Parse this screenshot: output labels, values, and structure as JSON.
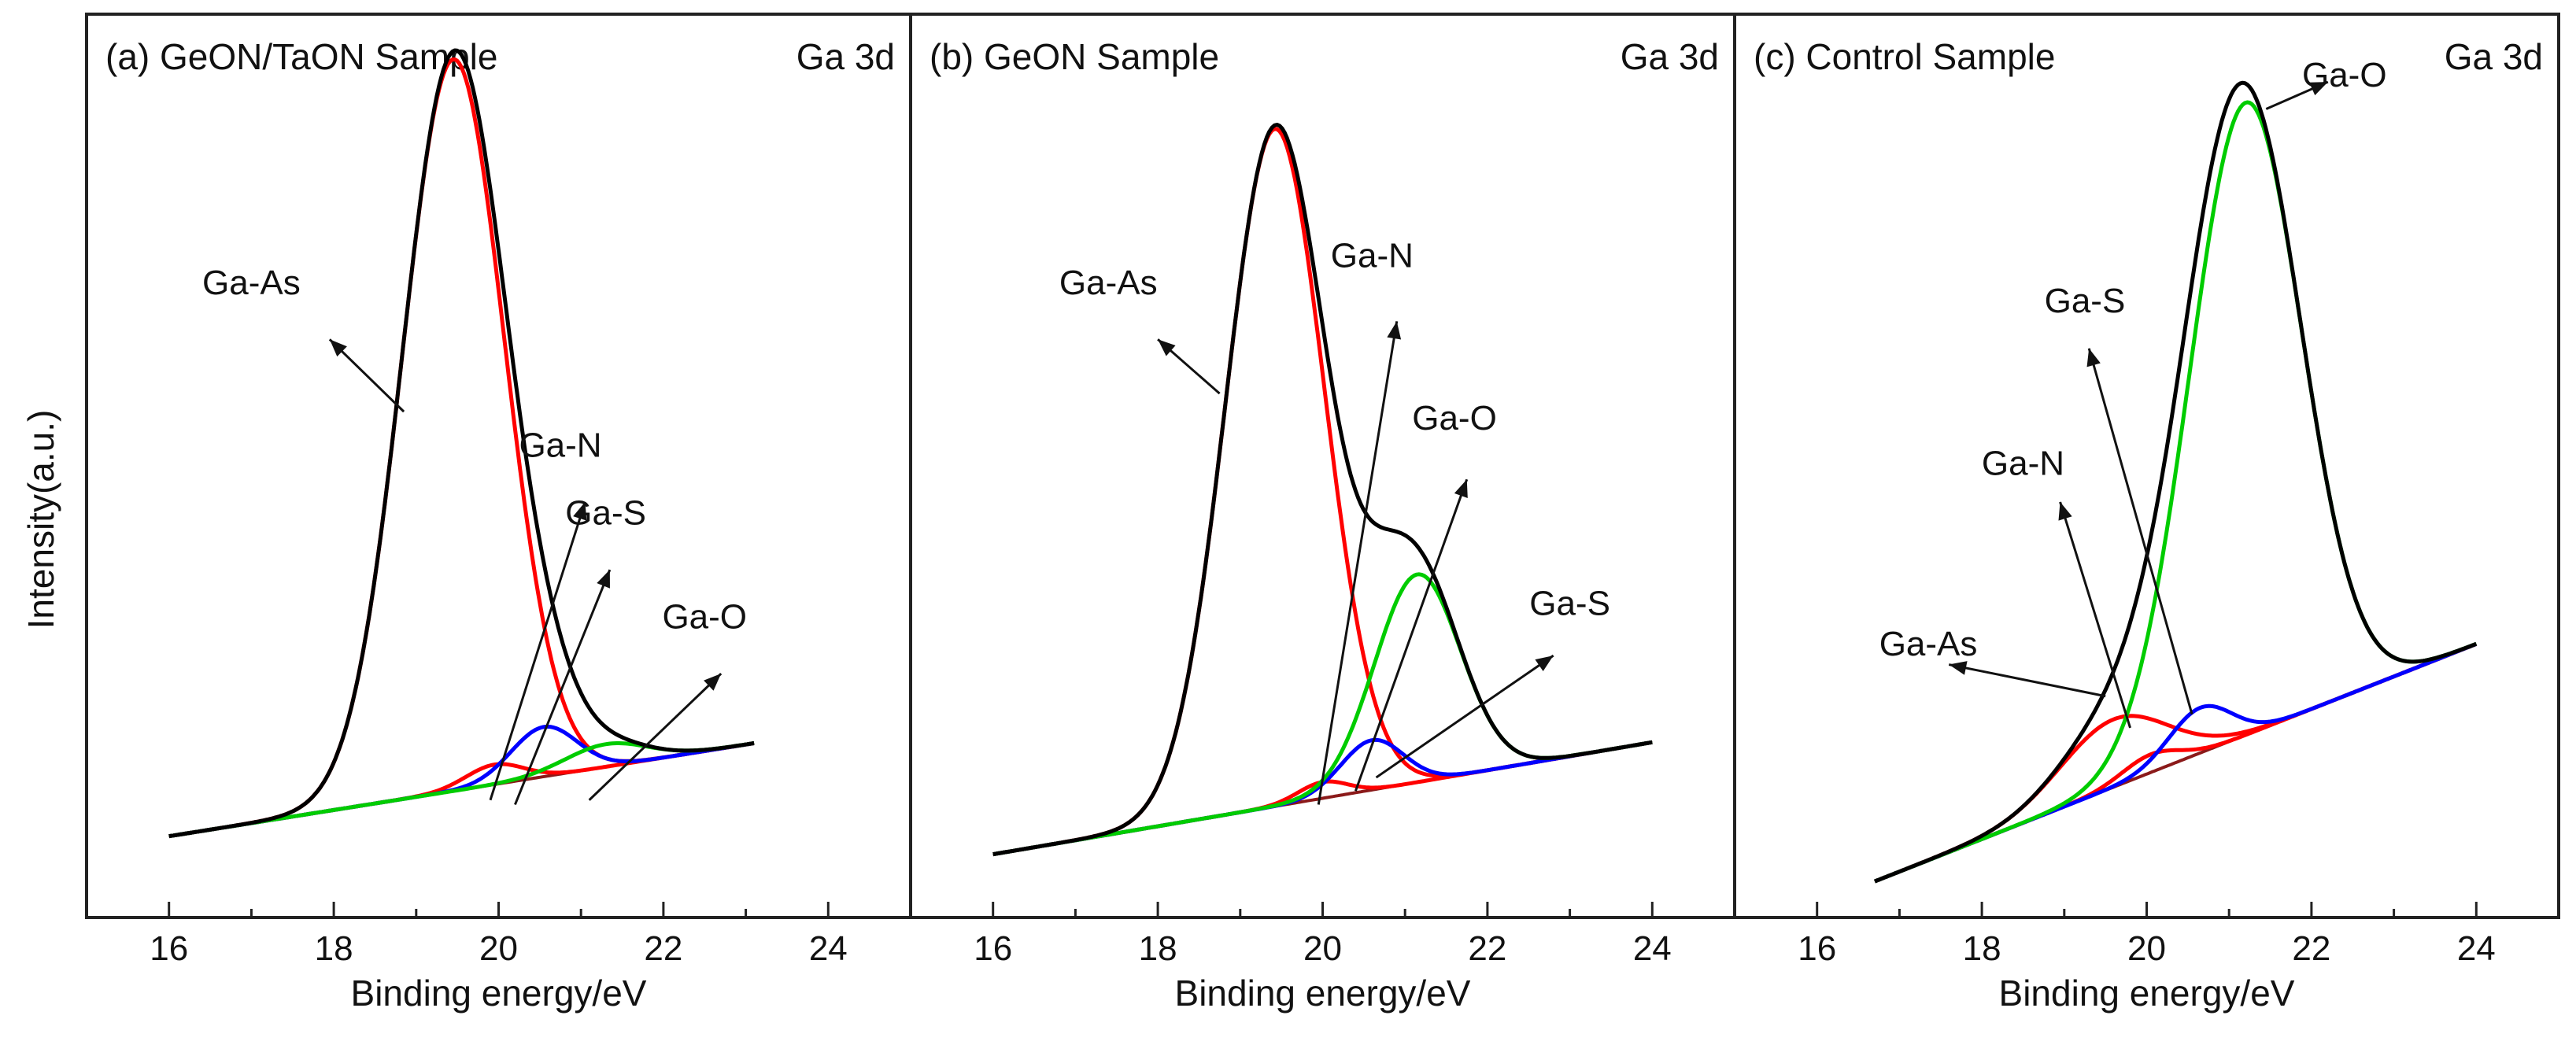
{
  "figure": {
    "ylabel": "Intensity(a.u.)"
  },
  "chart_data": [
    {
      "type": "line",
      "title": "(a) GeON/TaON Sample",
      "subtitle": "Ga 3d",
      "xlabel": "Binding energy/eV",
      "ylabel": "Intensity(a.u.)",
      "xlim": [
        15,
        25
      ],
      "ylim": [
        0,
        100
      ],
      "xticks": [
        16,
        18,
        20,
        22,
        24
      ],
      "grid": false,
      "x_start": 16.0,
      "x_end": 23.1,
      "background": {
        "y0": 9,
        "slope": 1.45
      },
      "peaks": [
        {
          "name": "Ga-As",
          "center": 19.45,
          "height": 81,
          "sigma": 0.62,
          "color": "#ff0000"
        },
        {
          "name": "Ga-N",
          "center": 19.95,
          "height": 2.2,
          "sigma": 0.35,
          "color": "#ff0000"
        },
        {
          "name": "Ga-S",
          "center": 20.55,
          "height": 5.5,
          "sigma": 0.4,
          "color": "#0000ff"
        },
        {
          "name": "Ga-O",
          "center": 21.3,
          "height": 2.5,
          "sigma": 0.5,
          "color": "#00cc00"
        }
      ],
      "envelope_color": "#000000",
      "annotations": [
        {
          "text": "Ga-As",
          "label_x": 17.0,
          "label_y": 69,
          "arrow_from_x": 18.85,
          "arrow_from_y": 56,
          "arrow_to_x": 17.95,
          "arrow_to_y": 64
        },
        {
          "text": "Ga-N",
          "label_x": 20.75,
          "label_y": 51,
          "arrow_from_x": 19.9,
          "arrow_from_y": 13,
          "arrow_to_x": 21.05,
          "arrow_to_y": 46
        },
        {
          "text": "Ga-S",
          "label_x": 21.3,
          "label_y": 43.5,
          "arrow_from_x": 20.2,
          "arrow_from_y": 12.5,
          "arrow_to_x": 21.35,
          "arrow_to_y": 38.5
        },
        {
          "text": "Ga-O",
          "label_x": 22.5,
          "label_y": 32,
          "arrow_from_x": 21.1,
          "arrow_from_y": 13,
          "arrow_to_x": 22.7,
          "arrow_to_y": 27
        }
      ]
    },
    {
      "type": "line",
      "title": "(b) GeON Sample",
      "subtitle": "Ga 3d",
      "xlabel": "Binding energy/eV",
      "ylabel": "",
      "xlim": [
        15,
        25
      ],
      "ylim": [
        0,
        100
      ],
      "xticks": [
        16,
        18,
        20,
        22,
        24
      ],
      "grid": false,
      "x_start": 16.0,
      "x_end": 24.0,
      "background": {
        "y0": 7,
        "slope": 1.55
      },
      "peaks": [
        {
          "name": "Ga-As",
          "center": 19.42,
          "height": 75,
          "sigma": 0.6,
          "color": "#ff0000"
        },
        {
          "name": "Ga-N",
          "center": 20.0,
          "height": 1.8,
          "sigma": 0.3,
          "color": "#ff0000"
        },
        {
          "name": "Ga-S",
          "center": 20.6,
          "height": 5.5,
          "sigma": 0.38,
          "color": "#0000ff"
        },
        {
          "name": "Ga-O",
          "center": 21.15,
          "height": 23,
          "sigma": 0.52,
          "color": "#00cc00"
        }
      ],
      "envelope_color": "#000000",
      "annotations": [
        {
          "text": "Ga-As",
          "label_x": 17.4,
          "label_y": 69,
          "arrow_from_x": 18.75,
          "arrow_from_y": 58,
          "arrow_to_x": 18.0,
          "arrow_to_y": 64
        },
        {
          "text": "Ga-N",
          "label_x": 20.6,
          "label_y": 72,
          "arrow_from_x": 19.95,
          "arrow_from_y": 12.5,
          "arrow_to_x": 20.9,
          "arrow_to_y": 66
        },
        {
          "text": "Ga-O",
          "label_x": 21.6,
          "label_y": 54,
          "arrow_from_x": 20.4,
          "arrow_from_y": 14,
          "arrow_to_x": 21.75,
          "arrow_to_y": 48.5
        },
        {
          "text": "Ga-S",
          "label_x": 23.0,
          "label_y": 33.5,
          "arrow_from_x": 20.65,
          "arrow_from_y": 15.5,
          "arrow_to_x": 22.8,
          "arrow_to_y": 29
        }
      ]
    },
    {
      "type": "line",
      "title": "(c) Control Sample",
      "subtitle": "Ga 3d",
      "xlabel": "Binding energy/eV",
      "ylabel": "",
      "xlim": [
        15,
        25
      ],
      "ylim": [
        0,
        100
      ],
      "xticks": [
        16,
        18,
        20,
        22,
        24
      ],
      "grid": false,
      "x_start": 16.7,
      "x_end": 24.0,
      "background": {
        "y0": 4,
        "slope": 3.6
      },
      "peaks": [
        {
          "name": "Ga-As",
          "center": 19.6,
          "height": 7.5,
          "sigma": 0.65,
          "color": "#ff0000"
        },
        {
          "name": "Ga-N",
          "center": 20.05,
          "height": 2.0,
          "sigma": 0.35,
          "color": "#ff0000"
        },
        {
          "name": "Ga-S",
          "center": 20.65,
          "height": 5.0,
          "sigma": 0.38,
          "color": "#0000ff"
        },
        {
          "name": "Ga-O",
          "center": 21.2,
          "height": 70,
          "sigma": 0.68,
          "color": "#00cc00"
        }
      ],
      "envelope_color": "#000000",
      "annotations": [
        {
          "text": "Ga-O",
          "label_x": 22.4,
          "label_y": 92,
          "arrow_from_x": 21.45,
          "arrow_from_y": 89.5,
          "arrow_to_x": 22.2,
          "arrow_to_y": 92.5
        },
        {
          "text": "Ga-S",
          "label_x": 19.25,
          "label_y": 67,
          "arrow_from_x": 20.55,
          "arrow_from_y": 22.5,
          "arrow_to_x": 19.3,
          "arrow_to_y": 63
        },
        {
          "text": "Ga-N",
          "label_x": 18.5,
          "label_y": 49,
          "arrow_from_x": 19.8,
          "arrow_from_y": 21,
          "arrow_to_x": 18.95,
          "arrow_to_y": 46
        },
        {
          "text": "Ga-As",
          "label_x": 17.35,
          "label_y": 29,
          "arrow_from_x": 19.5,
          "arrow_from_y": 24.5,
          "arrow_to_x": 17.6,
          "arrow_to_y": 28
        }
      ]
    }
  ]
}
